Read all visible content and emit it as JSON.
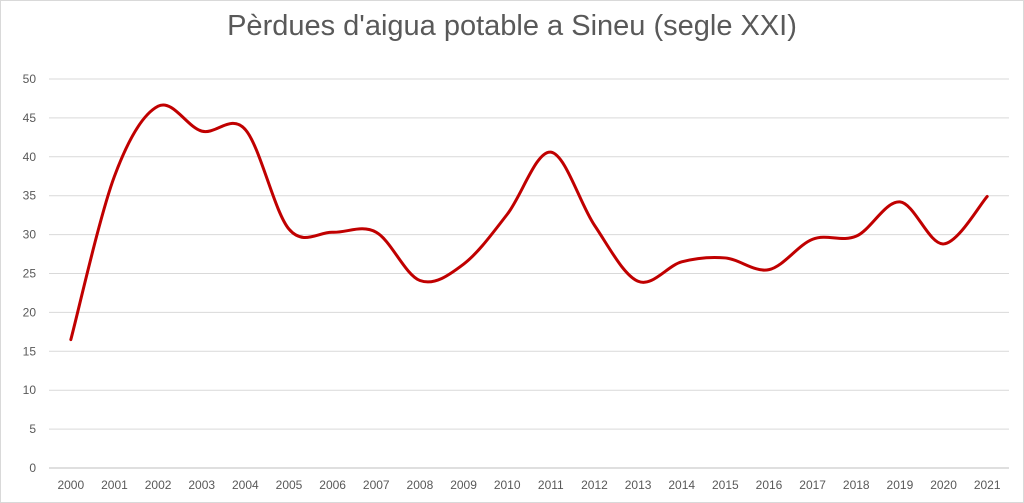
{
  "chart_data": {
    "type": "line",
    "title": "Pèrdues d'aigua potable a Sineu (segle XXI)",
    "xlabel": "",
    "ylabel": "",
    "ylim": [
      0,
      50
    ],
    "yticks": [
      0,
      5,
      10,
      15,
      20,
      25,
      30,
      35,
      40,
      45,
      50
    ],
    "grid": true,
    "legend": "none",
    "categories": [
      "2000",
      "2001",
      "2002",
      "2003",
      "2004",
      "2005",
      "2006",
      "2007",
      "2008",
      "2009",
      "2010",
      "2011",
      "2012",
      "2013",
      "2014",
      "2015",
      "2016",
      "2017",
      "2018",
      "2019",
      "2020",
      "2021"
    ],
    "series": [
      {
        "color": "#c00000",
        "values": [
          16.5,
          37.5,
          46.5,
          43.3,
          43.5,
          30.7,
          30.3,
          30.3,
          24.1,
          26.2,
          32.6,
          40.6,
          31.2,
          24.0,
          26.5,
          27.0,
          25.5,
          29.4,
          29.8,
          34.2,
          28.8,
          34.9
        ]
      }
    ]
  }
}
